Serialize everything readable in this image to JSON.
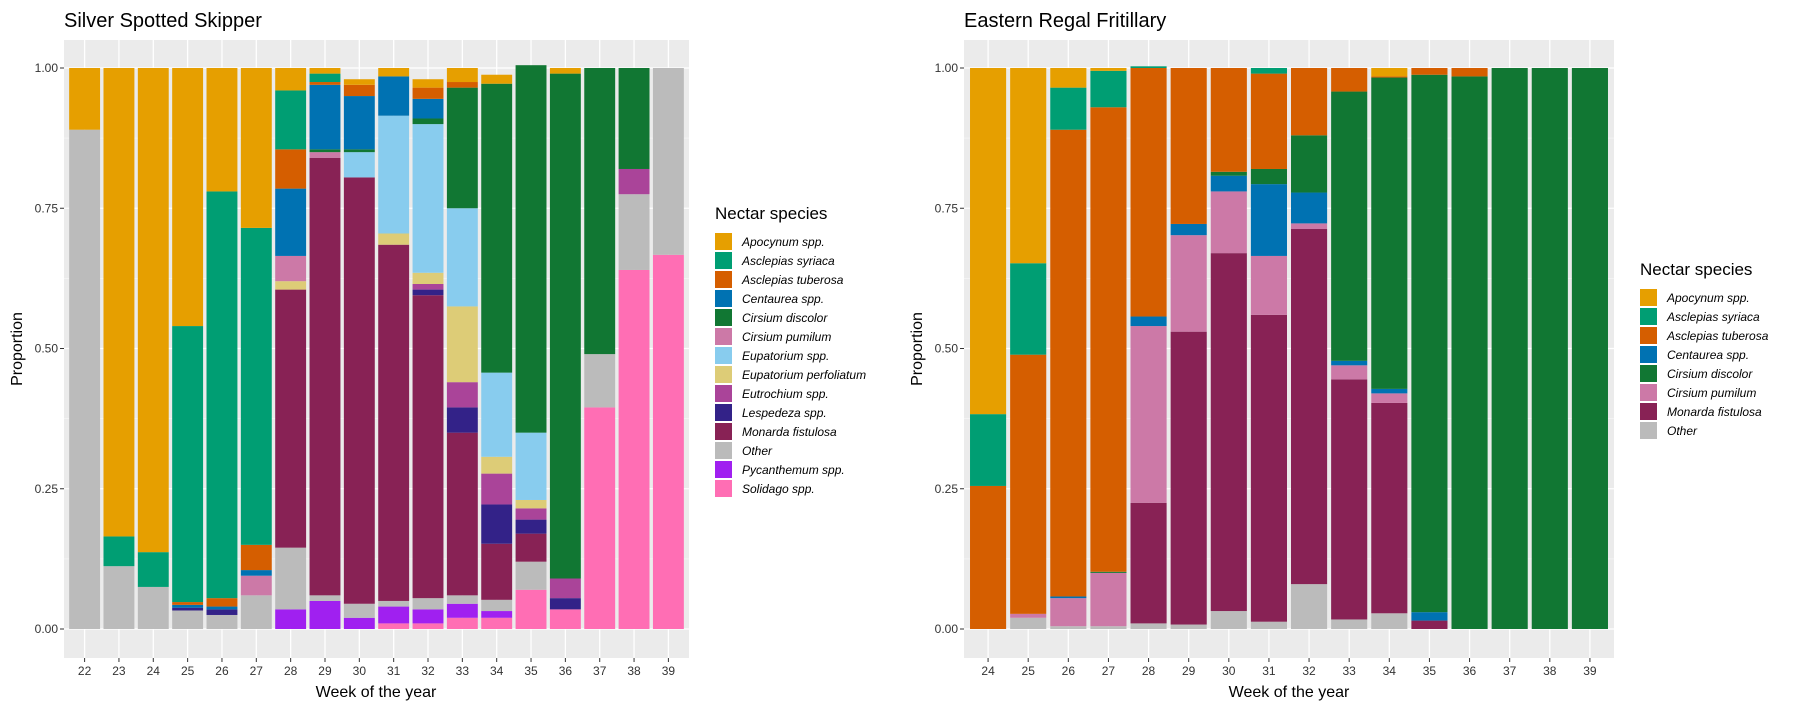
{
  "chart_data": [
    {
      "type": "bar",
      "stacked": true,
      "title": "Silver Spotted Skipper",
      "xlabel": "Week of the year",
      "ylabel": "Proportion",
      "ylim": [
        0,
        1
      ],
      "yticks": [
        "0.00",
        "0.25",
        "0.50",
        "0.75",
        "1.00"
      ],
      "legend_title": "Nectar species",
      "legend_position": "right",
      "categories": [
        "22",
        "23",
        "24",
        "25",
        "26",
        "27",
        "28",
        "29",
        "30",
        "31",
        "32",
        "33",
        "34",
        "35",
        "36",
        "37",
        "38",
        "39"
      ],
      "series": [
        {
          "name": "Solidago spp.",
          "color": "#FF6EB4",
          "values": [
            0,
            0,
            0,
            0,
            0,
            0,
            0,
            0,
            0,
            0.01,
            0.01,
            0.02,
            0.02,
            0.07,
            0.035,
            0.395,
            0.64,
            0.667
          ]
        },
        {
          "name": "Pycanthemum spp.",
          "color": "#A020F0",
          "values": [
            0,
            0,
            0,
            0,
            0,
            0,
            0.035,
            0.05,
            0.02,
            0.03,
            0.025,
            0.025,
            0.012,
            0,
            0,
            0,
            0,
            0
          ]
        },
        {
          "name": "Other",
          "color": "#BBBBBB",
          "values": [
            0.89,
            0.112,
            0.075,
            0.033,
            0.025,
            0.06,
            0.11,
            0.01,
            0.025,
            0.01,
            0.02,
            0.015,
            0.02,
            0.05,
            0,
            0.095,
            0.135,
            0.333
          ]
        },
        {
          "name": "Monarda fistulosa",
          "color": "#882255",
          "values": [
            0,
            0,
            0,
            0,
            0,
            0,
            0.46,
            0.78,
            0.76,
            0.635,
            0.54,
            0.29,
            0.1,
            0.05,
            0,
            0,
            0,
            0
          ]
        },
        {
          "name": "Lespedeza spp.",
          "color": "#332288",
          "values": [
            0,
            0,
            0,
            0.005,
            0.01,
            0,
            0,
            0,
            0,
            0,
            0.01,
            0.045,
            0.07,
            0.025,
            0.02,
            0,
            0,
            0
          ]
        },
        {
          "name": "Eutrochium spp.",
          "color": "#AA4499",
          "values": [
            0,
            0,
            0,
            0,
            0,
            0,
            0,
            0,
            0,
            0,
            0.01,
            0.045,
            0.055,
            0.02,
            0.035,
            0,
            0.045,
            0
          ]
        },
        {
          "name": "Eupatorium perfoliatum",
          "color": "#DDCC77",
          "values": [
            0,
            0,
            0,
            0,
            0,
            0,
            0.015,
            0,
            0,
            0.02,
            0.02,
            0.135,
            0.03,
            0.015,
            0,
            0,
            0,
            0
          ]
        },
        {
          "name": "Eupatorium spp.",
          "color": "#88CCEE",
          "values": [
            0,
            0,
            0,
            0,
            0,
            0,
            0,
            0,
            0.045,
            0.21,
            0.265,
            0.175,
            0.15,
            0.12,
            0,
            0,
            0,
            0
          ]
        },
        {
          "name": "Cirsium pumilum",
          "color": "#CC79A7",
          "values": [
            0,
            0,
            0,
            0,
            0,
            0.035,
            0.045,
            0.01,
            0,
            0,
            0,
            0,
            0,
            0,
            0,
            0,
            0,
            0
          ]
        },
        {
          "name": "Cirsium discolor",
          "color": "#117733",
          "values": [
            0,
            0,
            0,
            0,
            0,
            0,
            0,
            0.005,
            0.005,
            0,
            0.01,
            0.215,
            0.515,
            0.655,
            0.9,
            0.51,
            0.18,
            0
          ]
        },
        {
          "name": "Centaurea spp.",
          "color": "#0072B2",
          "values": [
            0,
            0,
            0,
            0.005,
            0.005,
            0.01,
            0.12,
            0.115,
            0.095,
            0.07,
            0.035,
            0,
            0,
            0,
            0,
            0,
            0,
            0
          ]
        },
        {
          "name": "Asclepias tuberosa",
          "color": "#D55E00",
          "values": [
            0,
            0,
            0,
            0.005,
            0.015,
            0.045,
            0.07,
            0.005,
            0.02,
            0,
            0.02,
            0.01,
            0,
            0,
            0,
            0,
            0,
            0
          ]
        },
        {
          "name": "Asclepias syriaca",
          "color": "#009E73",
          "values": [
            0,
            0.053,
            0.062,
            0.492,
            0.725,
            0.565,
            0.105,
            0.015,
            0,
            0,
            0,
            0,
            0,
            0,
            0,
            0,
            0,
            0
          ]
        },
        {
          "name": "Apocynum spp.",
          "color": "#E69F00",
          "values": [
            0.11,
            0.835,
            0.863,
            0.46,
            0.22,
            0.285,
            0.04,
            0.01,
            0.01,
            0.015,
            0.015,
            0.025,
            0.016,
            0,
            0.01,
            0,
            0,
            0
          ]
        }
      ],
      "legend_order": [
        "Apocynum spp.",
        "Asclepias syriaca",
        "Asclepias tuberosa",
        "Centaurea spp.",
        "Cirsium discolor",
        "Cirsium pumilum",
        "Eupatorium spp.",
        "Eupatorium perfoliatum",
        "Eutrochium spp.",
        "Lespedeza spp.",
        "Monarda fistulosa",
        "Other",
        "Pycanthemum spp.",
        "Solidago spp."
      ]
    },
    {
      "type": "bar",
      "stacked": true,
      "title": "Eastern Regal Fritillary",
      "xlabel": "Week of the year",
      "ylabel": "Proportion",
      "ylim": [
        0,
        1
      ],
      "yticks": [
        "0.00",
        "0.25",
        "0.50",
        "0.75",
        "1.00"
      ],
      "legend_title": "Nectar species",
      "legend_position": "right",
      "categories": [
        "24",
        "25",
        "26",
        "27",
        "28",
        "29",
        "30",
        "31",
        "32",
        "33",
        "34",
        "35",
        "36",
        "37",
        "38",
        "39"
      ],
      "series": [
        {
          "name": "Other",
          "color": "#BBBBBB",
          "values": [
            0,
            0.02,
            0.005,
            0.005,
            0.01,
            0.008,
            0.032,
            0.013,
            0.08,
            0.017,
            0.028,
            0,
            0,
            0,
            0,
            0
          ]
        },
        {
          "name": "Monarda fistulosa",
          "color": "#882255",
          "values": [
            0,
            0,
            0,
            0,
            0.215,
            0.522,
            0.638,
            0.547,
            0.633,
            0.428,
            0.375,
            0.015,
            0,
            0,
            0,
            0
          ]
        },
        {
          "name": "Cirsium pumilum",
          "color": "#CC79A7",
          "values": [
            0,
            0.007,
            0.05,
            0.095,
            0.315,
            0.172,
            0.11,
            0.105,
            0.01,
            0.025,
            0.017,
            0,
            0,
            0,
            0,
            0
          ]
        },
        {
          "name": "Centaurea spp.",
          "color": "#0072B2",
          "values": [
            0,
            0,
            0.003,
            0,
            0.017,
            0.02,
            0.028,
            0.128,
            0.055,
            0.008,
            0.008,
            0.015,
            0,
            0,
            0,
            0
          ]
        },
        {
          "name": "Cirsium discolor",
          "color": "#117733",
          "values": [
            0,
            0,
            0,
            0.002,
            0,
            0,
            0.007,
            0.027,
            0.102,
            0.48,
            0.555,
            0.958,
            0.985,
            1,
            1,
            1
          ]
        },
        {
          "name": "Asclepias tuberosa",
          "color": "#D55E00",
          "values": [
            0.255,
            0.462,
            0.832,
            0.828,
            0.443,
            0.278,
            0.185,
            0.17,
            0.12,
            0.042,
            0.002,
            0.012,
            0.015,
            0,
            0,
            0
          ]
        },
        {
          "name": "Asclepias syriaca",
          "color": "#009E73",
          "values": [
            0.128,
            0.163,
            0.075,
            0.065,
            0.003,
            0,
            0,
            0.01,
            0,
            0,
            0,
            0,
            0,
            0,
            0,
            0
          ]
        },
        {
          "name": "Apocynum spp.",
          "color": "#E69F00",
          "values": [
            0.617,
            0.348,
            0.035,
            0.005,
            0,
            0,
            0,
            0,
            0,
            0,
            0.015,
            0,
            0,
            0,
            0,
            0
          ]
        }
      ],
      "legend_order": [
        "Apocynum spp.",
        "Asclepias syriaca",
        "Asclepias tuberosa",
        "Centaurea spp.",
        "Cirsium discolor",
        "Cirsium pumilum",
        "Monarda fistulosa",
        "Other"
      ]
    }
  ]
}
